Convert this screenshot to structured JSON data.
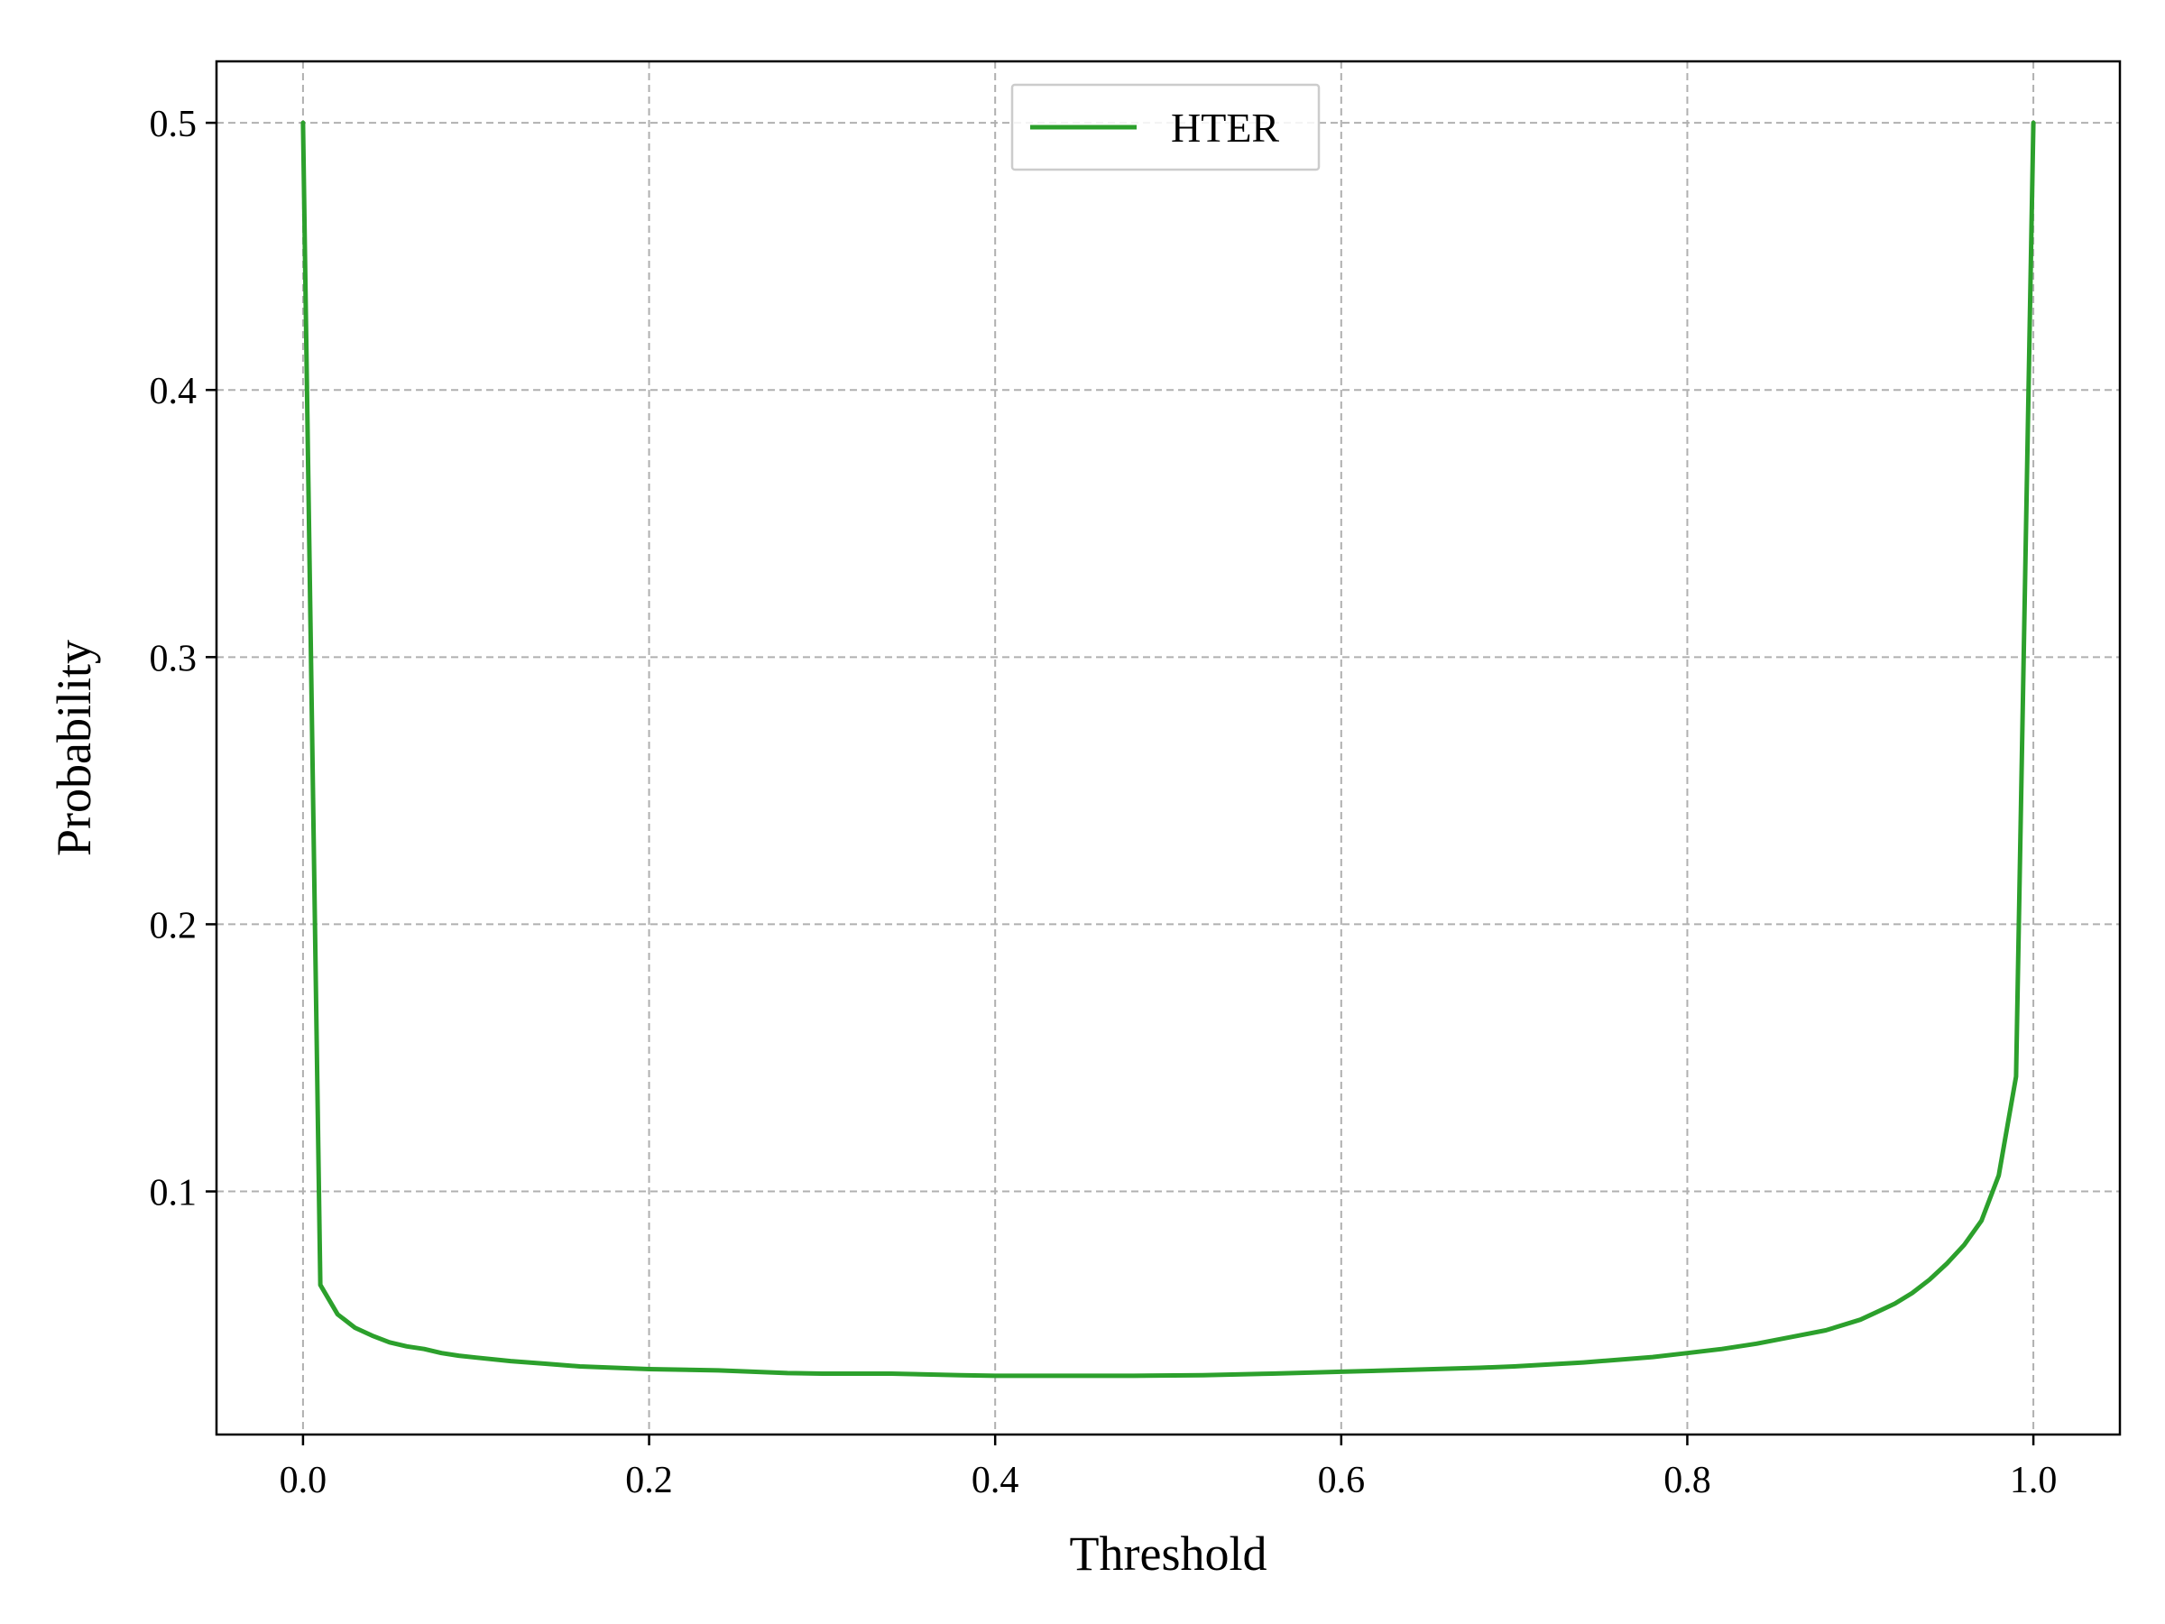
{
  "chart_data": {
    "type": "line",
    "title": "",
    "xlabel": "Threshold",
    "ylabel": "Probability",
    "xlim": [
      -0.05,
      1.05
    ],
    "ylim": [
      0.009,
      0.523
    ],
    "xticks": [
      0.0,
      0.2,
      0.4,
      0.6,
      0.8,
      1.0
    ],
    "xtick_labels": [
      "0.0",
      "0.2",
      "0.4",
      "0.6",
      "0.8",
      "1.0"
    ],
    "yticks": [
      0.1,
      0.2,
      0.3,
      0.4,
      0.5
    ],
    "ytick_labels": [
      "0.1",
      "0.2",
      "0.3",
      "0.4",
      "0.5"
    ],
    "grid": true,
    "legend_position": "upper-center",
    "series": [
      {
        "name": "HTER",
        "color": "#2ca02c",
        "x": [
          0.0,
          0.01,
          0.02,
          0.03,
          0.04,
          0.05,
          0.06,
          0.07,
          0.08,
          0.09,
          0.1,
          0.12,
          0.14,
          0.16,
          0.18,
          0.2,
          0.24,
          0.28,
          0.3,
          0.34,
          0.38,
          0.4,
          0.44,
          0.48,
          0.52,
          0.56,
          0.6,
          0.64,
          0.68,
          0.7,
          0.74,
          0.78,
          0.8,
          0.82,
          0.84,
          0.86,
          0.88,
          0.9,
          0.91,
          0.92,
          0.93,
          0.94,
          0.95,
          0.96,
          0.97,
          0.98,
          0.99,
          1.0
        ],
        "y": [
          0.5,
          0.065,
          0.054,
          0.049,
          0.046,
          0.0435,
          0.042,
          0.041,
          0.0395,
          0.0385,
          0.0378,
          0.0365,
          0.0355,
          0.0345,
          0.034,
          0.0335,
          0.033,
          0.032,
          0.0318,
          0.0318,
          0.0312,
          0.031,
          0.031,
          0.031,
          0.0312,
          0.0318,
          0.0325,
          0.0332,
          0.034,
          0.0345,
          0.036,
          0.038,
          0.0395,
          0.041,
          0.043,
          0.0455,
          0.048,
          0.052,
          0.055,
          0.058,
          0.062,
          0.067,
          0.073,
          0.08,
          0.089,
          0.106,
          0.143,
          0.5
        ]
      }
    ]
  }
}
